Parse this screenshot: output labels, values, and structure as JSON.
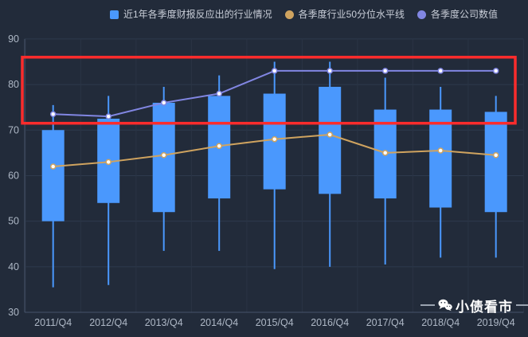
{
  "colors": {
    "background": "#222b3a",
    "grid": "#2e3a4d",
    "grid_vertical": "#2a3444",
    "axis": "#46536a",
    "tick_text": "#aeb8c6",
    "candle": "#4a98fd",
    "percentile_line": "#cfa35f",
    "company_line": "#8186e2",
    "marker_fill": "#ffffff",
    "annotation": "#fb2c2c",
    "watermark_text": "#ffffff"
  },
  "legend": {
    "items": [
      {
        "label": "近1年各季度财报反应出的行业情况",
        "color": "#4a98fd",
        "shape": "square"
      },
      {
        "label": "各季度行业50分位水平线",
        "color": "#cfa35f",
        "shape": "circle"
      },
      {
        "label": "各季度公司数值",
        "color": "#8186e2",
        "shape": "circle"
      }
    ]
  },
  "chart_data": {
    "type": "candlestick",
    "categories": [
      "2011/Q4",
      "2012/Q4",
      "2013/Q4",
      "2014/Q4",
      "2015/Q4",
      "2016/Q4",
      "2017/Q4",
      "2018/Q4",
      "2019/Q4"
    ],
    "yticks": [
      30,
      40,
      50,
      60,
      70,
      80,
      90
    ],
    "ylim": [
      30,
      90
    ],
    "grid": true,
    "legend_position": "top",
    "series": [
      {
        "name": "近1年各季度财报反应出的行业情况",
        "type": "candlestick",
        "color": "#4a98fd",
        "values_format": "[whisker_low, box_low, box_high, whisker_high]",
        "values": [
          [
            35.5,
            50,
            70,
            75.5
          ],
          [
            36,
            54,
            72.5,
            77.5
          ],
          [
            43.5,
            52,
            76,
            79.5
          ],
          [
            43.5,
            55,
            77.5,
            82
          ],
          [
            39.5,
            57,
            78,
            85
          ],
          [
            40,
            56,
            79.5,
            85
          ],
          [
            40.5,
            55,
            74.5,
            81.5
          ],
          [
            42,
            53,
            74.5,
            79.5
          ],
          [
            42,
            52,
            74,
            77.5
          ]
        ]
      },
      {
        "name": "各季度行业50分位水平线",
        "type": "line",
        "color": "#cfa35f",
        "values": [
          62,
          63,
          64.5,
          66.5,
          68,
          69,
          65,
          65.5,
          64.5
        ]
      },
      {
        "name": "各季度公司数值",
        "type": "line",
        "color": "#8186e2",
        "values": [
          73.5,
          73,
          76,
          78,
          83,
          83,
          83,
          83,
          83
        ]
      }
    ],
    "annotation": {
      "type": "rect",
      "color": "#fb2c2c",
      "y_from": 71.5,
      "y_to": 86,
      "x_range": "full-width"
    }
  },
  "watermark": {
    "text": "小债看市",
    "icon": "wechat-icon"
  }
}
